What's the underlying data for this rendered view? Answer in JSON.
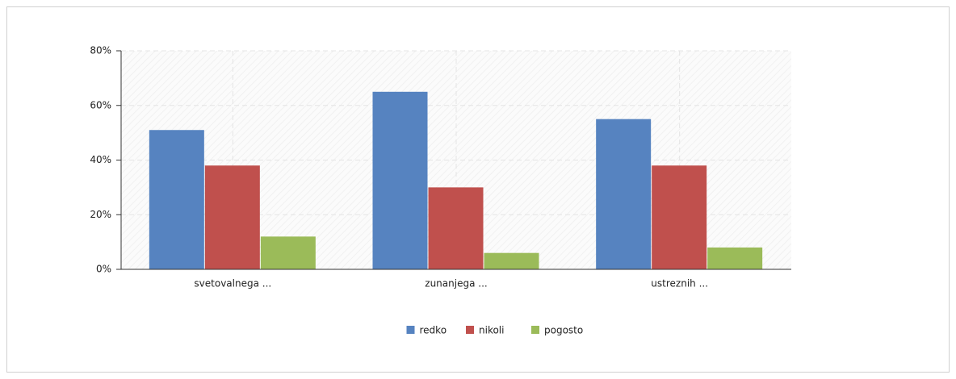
{
  "chart_data": {
    "type": "bar",
    "categories": [
      "svetovalnega ...",
      "zunanjega ...",
      "ustreznih ..."
    ],
    "series": [
      {
        "name": "redko",
        "color": "#5683c0",
        "values": [
          51,
          65,
          55
        ]
      },
      {
        "name": "nikoli",
        "color": "#c0504d",
        "values": [
          38,
          30,
          38
        ]
      },
      {
        "name": "pogosto",
        "color": "#9bbb59",
        "values": [
          12,
          6,
          8
        ]
      }
    ],
    "ylim": [
      0,
      80
    ],
    "yticks": [
      {
        "value": 0,
        "label": "0%"
      },
      {
        "value": 20,
        "label": "20%"
      },
      {
        "value": 40,
        "label": "40%"
      },
      {
        "value": 60,
        "label": "60%"
      },
      {
        "value": 80,
        "label": "80%"
      }
    ],
    "grid": true,
    "legend": "bottom"
  }
}
